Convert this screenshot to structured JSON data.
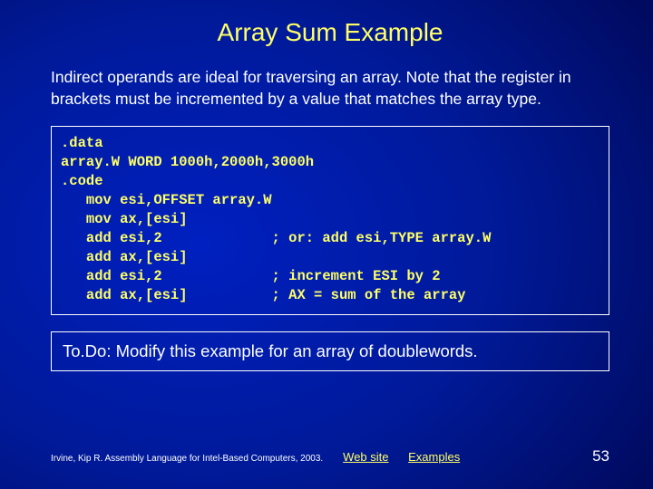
{
  "colors": {
    "background_inner": "#0020c0",
    "background_outer": "#000020",
    "accent": "#ffff66",
    "text": "#ffffff",
    "border": "#ffffff"
  },
  "title": "Array Sum Example",
  "body_text": "Indirect operands are ideal for traversing an array. Note that the register in brackets must be incremented by a value that matches the array type.",
  "code_lines": [
    ".data",
    "array.W WORD 1000h,2000h,3000h",
    ".code",
    "   mov esi,OFFSET array.W",
    "   mov ax,[esi]",
    "   add esi,2             ; or: add esi,TYPE array.W",
    "   add ax,[esi]",
    "   add esi,2             ; increment ESI by 2",
    "   add ax,[esi]          ; AX = sum of the array"
  ],
  "todo_text": "To.Do: Modify this example for an array of doublewords.",
  "footer": {
    "citation": "Irvine, Kip R. Assembly Language for Intel-Based Computers, 2003.",
    "links": [
      {
        "label": "Web site"
      },
      {
        "label": "Examples"
      }
    ],
    "page_number": "53"
  },
  "typography": {
    "title_fontsize_pt": 21,
    "body_fontsize_pt": 13,
    "code_fontsize_pt": 12,
    "code_fontfamily": "Courier New",
    "code_fontweight": "bold",
    "footer_fontsize_pt": 8,
    "pagenum_fontsize_pt": 13
  }
}
